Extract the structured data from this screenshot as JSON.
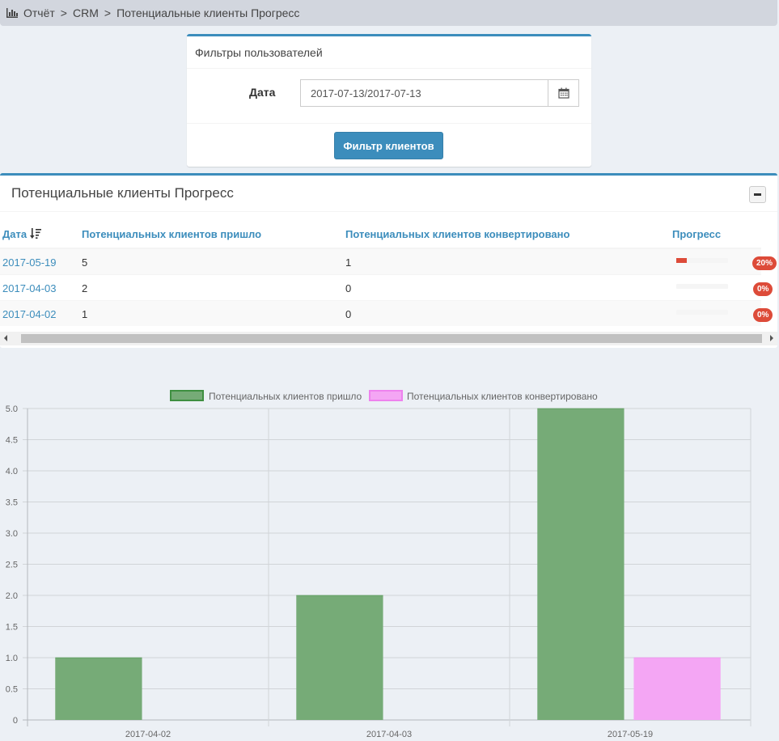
{
  "breadcrumb": {
    "icon": "bar-chart-icon",
    "items": [
      "Отчёт",
      "CRM",
      "Потенциальные клиенты Прогресс"
    ],
    "separator": ">"
  },
  "filters": {
    "title": "Фильтры пользователей",
    "date_label": "Дата",
    "date_value": "2017-07-13/2017-07-13",
    "calendar_icon": "calendar-icon",
    "button_label": "Фильтр клиентов"
  },
  "progress": {
    "title": "Потенциальные клиенты Прогресс",
    "collapse_icon": "minus-icon",
    "columns": {
      "date": "Дата",
      "date_sort_icon": "sort-amount-desc-icon",
      "came": "Потенциальных клиентов пришло",
      "converted": "Потенциальных клиентов конвертировано",
      "progress": "Прогресс"
    },
    "rows": [
      {
        "date": "2017-05-19",
        "came": "5",
        "converted": "1",
        "percent": 20,
        "badge": "20%"
      },
      {
        "date": "2017-04-03",
        "came": "2",
        "converted": "0",
        "percent": 0,
        "badge": "0%"
      },
      {
        "date": "2017-04-02",
        "came": "1",
        "converted": "0",
        "percent": 0,
        "badge": "0%"
      }
    ]
  },
  "colors": {
    "accent": "#3c8dbc",
    "danger": "#dd4b39",
    "series_came_fill": "#76ab77",
    "series_came_border": "#3f8f41",
    "series_converted_fill": "#f4a6f4",
    "series_converted_border": "#ee82ee"
  },
  "chart_data": {
    "type": "bar",
    "categories": [
      "2017-04-02",
      "2017-04-03",
      "2017-05-19"
    ],
    "series": [
      {
        "name": "Потенциальных клиентов пришло",
        "values": [
          1,
          2,
          5
        ]
      },
      {
        "name": "Потенциальных клиентов конвертировано",
        "values": [
          0,
          0,
          1
        ]
      }
    ],
    "ylim": [
      0,
      5
    ],
    "yticks": [
      "0",
      "0.5",
      "1.0",
      "1.5",
      "2.0",
      "2.5",
      "3.0",
      "3.5",
      "4.0",
      "4.5",
      "5.0"
    ],
    "grid": true,
    "legend": "top-center"
  }
}
